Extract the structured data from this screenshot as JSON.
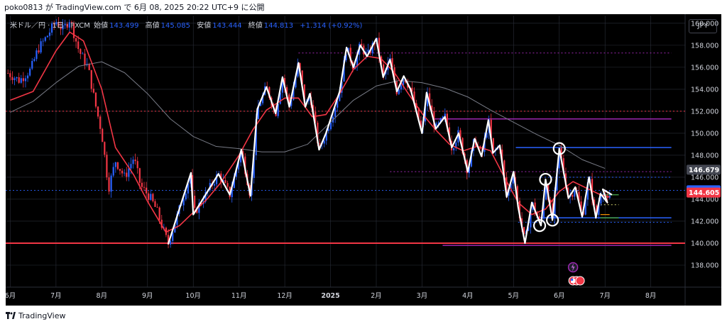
{
  "topline": "poko0813 が TradingView.com で 6月 08, 2025 20:22 UTC+9 に公開",
  "header": {
    "symbol": "米ドル／円 · 1日 · FXCM",
    "open_label": "始値",
    "open": "143.499",
    "high_label": "高値",
    "high": "145.085",
    "low_label": "安値",
    "low": "143.444",
    "close_label": "終値",
    "close": "144.813",
    "change": "+1.314 (+0.92%)"
  },
  "currency": "JPY",
  "footer": {
    "brand": "TradingView"
  },
  "price_tags": [
    {
      "value": 146.679,
      "label": "146.679",
      "bg": "#434651",
      "fg": "#ffffff"
    },
    {
      "value": 144.813,
      "label": "144.813",
      "bg": "#2962ff",
      "fg": "#ffffff"
    },
    {
      "value": 144.605,
      "label": "144.605",
      "bg": "#f23645",
      "fg": "#ffffff"
    }
  ],
  "colors": {
    "background": "#000000",
    "grid": "#2a2e39",
    "up": "#2962ff",
    "down": "#f23645",
    "ma_fast": "#f23645",
    "ma_slow": "#787b86",
    "zigzag": "#ffffff",
    "support": "#f23645",
    "purple": "#9c27b0",
    "blue_line": "#2962ff",
    "green_line": "#4caf50"
  },
  "chart_data": {
    "type": "candlestick",
    "title": "",
    "ylim": [
      136.0,
      160.7
    ],
    "y_ticks": [
      138,
      140,
      142,
      144,
      146,
      148,
      150,
      152,
      154,
      156,
      158,
      160
    ],
    "y_tick_labels": [
      "138.000",
      "140.000",
      "142.000",
      "144.000",
      "146.000",
      "148.000",
      "150.000",
      "152.000",
      "154.000",
      "156.000",
      "158.000",
      "160.000"
    ],
    "x_ticks": [
      "6月",
      "7月",
      "8月",
      "9月",
      "10月",
      "11月",
      "12月",
      "2025",
      "2月",
      "3月",
      "4月",
      "5月",
      "6月",
      "7月",
      "8月"
    ],
    "x_tick_pos": [
      0,
      1,
      2,
      3,
      4,
      5,
      6,
      7,
      8,
      9,
      10,
      11,
      12,
      13,
      14
    ],
    "x_range": [
      -0.1,
      14.75
    ],
    "zigzag": [
      {
        "x": 3.45,
        "y": 139.9
      },
      {
        "x": 3.95,
        "y": 146.4
      },
      {
        "x": 4.0,
        "y": 142.6
      },
      {
        "x": 4.55,
        "y": 146.3
      },
      {
        "x": 4.8,
        "y": 144.4
      },
      {
        "x": 5.05,
        "y": 148.5
      },
      {
        "x": 5.25,
        "y": 144.3
      },
      {
        "x": 5.4,
        "y": 152.2
      },
      {
        "x": 5.6,
        "y": 154.2
      },
      {
        "x": 5.8,
        "y": 151.8
      },
      {
        "x": 5.95,
        "y": 155.1
      },
      {
        "x": 6.1,
        "y": 152.4
      },
      {
        "x": 6.3,
        "y": 156.4
      },
      {
        "x": 6.45,
        "y": 152.4
      },
      {
        "x": 6.55,
        "y": 153.6
      },
      {
        "x": 6.75,
        "y": 148.5
      },
      {
        "x": 6.9,
        "y": 150.0
      },
      {
        "x": 7.2,
        "y": 153.8
      },
      {
        "x": 7.35,
        "y": 157.8
      },
      {
        "x": 7.5,
        "y": 156.0
      },
      {
        "x": 7.65,
        "y": 158.0
      },
      {
        "x": 7.8,
        "y": 157.0
      },
      {
        "x": 8.0,
        "y": 158.6
      },
      {
        "x": 8.15,
        "y": 155.1
      },
      {
        "x": 8.3,
        "y": 156.7
      },
      {
        "x": 8.45,
        "y": 153.8
      },
      {
        "x": 8.6,
        "y": 155.2
      },
      {
        "x": 8.75,
        "y": 154.0
      },
      {
        "x": 9.0,
        "y": 150.0
      },
      {
        "x": 9.1,
        "y": 153.7
      },
      {
        "x": 9.3,
        "y": 150.4
      },
      {
        "x": 9.5,
        "y": 151.5
      },
      {
        "x": 9.65,
        "y": 148.7
      },
      {
        "x": 9.8,
        "y": 150.0
      },
      {
        "x": 10.0,
        "y": 146.5
      },
      {
        "x": 10.15,
        "y": 149.5
      },
      {
        "x": 10.3,
        "y": 147.9
      },
      {
        "x": 10.45,
        "y": 151.2
      },
      {
        "x": 10.55,
        "y": 148.2
      },
      {
        "x": 10.7,
        "y": 148.9
      },
      {
        "x": 10.85,
        "y": 144.2
      },
      {
        "x": 11.0,
        "y": 146.5
      },
      {
        "x": 11.1,
        "y": 143.3
      },
      {
        "x": 11.25,
        "y": 140.0
      },
      {
        "x": 11.4,
        "y": 143.7
      },
      {
        "x": 11.6,
        "y": 141.6
      },
      {
        "x": 11.7,
        "y": 145.8
      },
      {
        "x": 11.85,
        "y": 142.1
      },
      {
        "x": 12.0,
        "y": 148.6
      },
      {
        "x": 12.2,
        "y": 144.1
      },
      {
        "x": 12.35,
        "y": 145.1
      },
      {
        "x": 12.5,
        "y": 142.4
      },
      {
        "x": 12.65,
        "y": 146.0
      },
      {
        "x": 12.8,
        "y": 142.3
      },
      {
        "x": 12.9,
        "y": 144.5
      },
      {
        "x": 13.05,
        "y": 143.7
      },
      {
        "x": 12.95,
        "y": 144.9
      },
      {
        "x": 13.15,
        "y": 144.4
      }
    ],
    "ma_fast": [
      {
        "x": 0.0,
        "y": 153.0
      },
      {
        "x": 0.5,
        "y": 153.8
      },
      {
        "x": 1.0,
        "y": 157.5
      },
      {
        "x": 1.3,
        "y": 159.2
      },
      {
        "x": 1.6,
        "y": 158.4
      },
      {
        "x": 2.0,
        "y": 154.0
      },
      {
        "x": 2.3,
        "y": 148.7
      },
      {
        "x": 2.7,
        "y": 146.2
      },
      {
        "x": 3.0,
        "y": 143.8
      },
      {
        "x": 3.4,
        "y": 141.0
      },
      {
        "x": 3.7,
        "y": 141.6
      },
      {
        "x": 4.0,
        "y": 142.8
      },
      {
        "x": 4.3,
        "y": 144.0
      },
      {
        "x": 4.6,
        "y": 145.5
      },
      {
        "x": 5.0,
        "y": 148.0
      },
      {
        "x": 5.3,
        "y": 150.3
      },
      {
        "x": 5.6,
        "y": 152.1
      },
      {
        "x": 6.0,
        "y": 153.2
      },
      {
        "x": 6.3,
        "y": 153.2
      },
      {
        "x": 6.6,
        "y": 151.5
      },
      {
        "x": 6.9,
        "y": 151.7
      },
      {
        "x": 7.2,
        "y": 153.6
      },
      {
        "x": 7.5,
        "y": 155.8
      },
      {
        "x": 7.8,
        "y": 157.0
      },
      {
        "x": 8.1,
        "y": 156.8
      },
      {
        "x": 8.4,
        "y": 155.5
      },
      {
        "x": 8.7,
        "y": 153.6
      },
      {
        "x": 9.0,
        "y": 151.8
      },
      {
        "x": 9.3,
        "y": 150.3
      },
      {
        "x": 9.6,
        "y": 149.0
      },
      {
        "x": 9.9,
        "y": 148.4
      },
      {
        "x": 10.2,
        "y": 148.8
      },
      {
        "x": 10.5,
        "y": 148.4
      },
      {
        "x": 10.8,
        "y": 146.0
      },
      {
        "x": 11.1,
        "y": 143.7
      },
      {
        "x": 11.4,
        "y": 142.6
      },
      {
        "x": 11.7,
        "y": 143.1
      },
      {
        "x": 12.0,
        "y": 144.7
      },
      {
        "x": 12.3,
        "y": 145.6
      },
      {
        "x": 12.6,
        "y": 145.0
      },
      {
        "x": 12.9,
        "y": 144.4
      },
      {
        "x": 13.1,
        "y": 144.2
      }
    ],
    "ma_slow": [
      {
        "x": 0.0,
        "y": 151.9
      },
      {
        "x": 0.5,
        "y": 152.9
      },
      {
        "x": 1.0,
        "y": 154.6
      },
      {
        "x": 1.5,
        "y": 156.1
      },
      {
        "x": 2.0,
        "y": 156.5
      },
      {
        "x": 2.5,
        "y": 155.5
      },
      {
        "x": 3.0,
        "y": 153.6
      },
      {
        "x": 3.5,
        "y": 151.3
      },
      {
        "x": 4.0,
        "y": 149.7
      },
      {
        "x": 4.5,
        "y": 148.8
      },
      {
        "x": 5.0,
        "y": 148.6
      },
      {
        "x": 5.5,
        "y": 148.3
      },
      {
        "x": 6.0,
        "y": 148.3
      },
      {
        "x": 6.5,
        "y": 149.0
      },
      {
        "x": 7.0,
        "y": 151.0
      },
      {
        "x": 7.5,
        "y": 153.0
      },
      {
        "x": 8.0,
        "y": 154.3
      },
      {
        "x": 8.5,
        "y": 154.8
      },
      {
        "x": 9.0,
        "y": 154.6
      },
      {
        "x": 9.5,
        "y": 154.1
      },
      {
        "x": 10.0,
        "y": 153.3
      },
      {
        "x": 10.5,
        "y": 152.1
      },
      {
        "x": 11.0,
        "y": 151.0
      },
      {
        "x": 11.5,
        "y": 149.9
      },
      {
        "x": 12.0,
        "y": 148.9
      },
      {
        "x": 12.5,
        "y": 147.6
      },
      {
        "x": 13.0,
        "y": 146.8
      }
    ],
    "hlines": [
      {
        "y": 140.0,
        "x0": -0.1,
        "x1": 14.75,
        "color": "#f23645",
        "dash": false,
        "width": 2
      },
      {
        "y": 139.8,
        "x0": 9.45,
        "x1": 14.45,
        "color": "#9c27b0",
        "dash": false,
        "width": 1.5
      },
      {
        "y": 152.0,
        "x0": -0.1,
        "x1": 14.75,
        "color": "#f23645",
        "dash": true,
        "width": 1
      },
      {
        "y": 157.3,
        "x0": 6.3,
        "x1": 14.45,
        "color": "#9c27b0",
        "dash": true,
        "width": 1
      },
      {
        "y": 151.3,
        "x0": 9.25,
        "x1": 14.45,
        "color": "#9c27b0",
        "dash": false,
        "width": 1.5
      },
      {
        "y": 148.7,
        "x0": 11.05,
        "x1": 14.45,
        "color": "#2962ff",
        "dash": false,
        "width": 1.5
      },
      {
        "y": 146.5,
        "x0": 8.3,
        "x1": 14.45,
        "color": "#9c27b0",
        "dash": true,
        "width": 1
      },
      {
        "y": 146.0,
        "x0": 11.6,
        "x1": 14.45,
        "color": "#2962ff",
        "dash": true,
        "width": 1
      },
      {
        "y": 144.8,
        "x0": -0.1,
        "x1": 14.75,
        "color": "#2962ff",
        "dash": true,
        "width": 0.8
      },
      {
        "y": 142.3,
        "x0": 11.5,
        "x1": 14.45,
        "color": "#2962ff",
        "dash": false,
        "width": 1.5
      },
      {
        "y": 141.9,
        "x0": 11.1,
        "x1": 14.45,
        "color": "#2962ff",
        "dash": true,
        "width": 1
      },
      {
        "y": 144.4,
        "x0": 12.9,
        "x1": 13.3,
        "color": "#4caf50",
        "dash": false,
        "width": 1.3
      },
      {
        "y": 143.5,
        "x0": 12.9,
        "x1": 13.3,
        "color": "#d6d66f",
        "dash": true,
        "width": 1
      },
      {
        "y": 142.3,
        "x0": 12.9,
        "x1": 13.3,
        "color": "#4caf50",
        "dash": false,
        "width": 1.3
      },
      {
        "y": 142.6,
        "x0": 12.9,
        "x1": 13.1,
        "color": "#ff9800",
        "dash": false,
        "width": 1.2
      }
    ],
    "circles": [
      {
        "x": 11.57,
        "y": 141.6
      },
      {
        "x": 11.7,
        "y": 145.8
      },
      {
        "x": 11.85,
        "y": 142.1
      },
      {
        "x": 12.0,
        "y": 148.6
      }
    ]
  }
}
